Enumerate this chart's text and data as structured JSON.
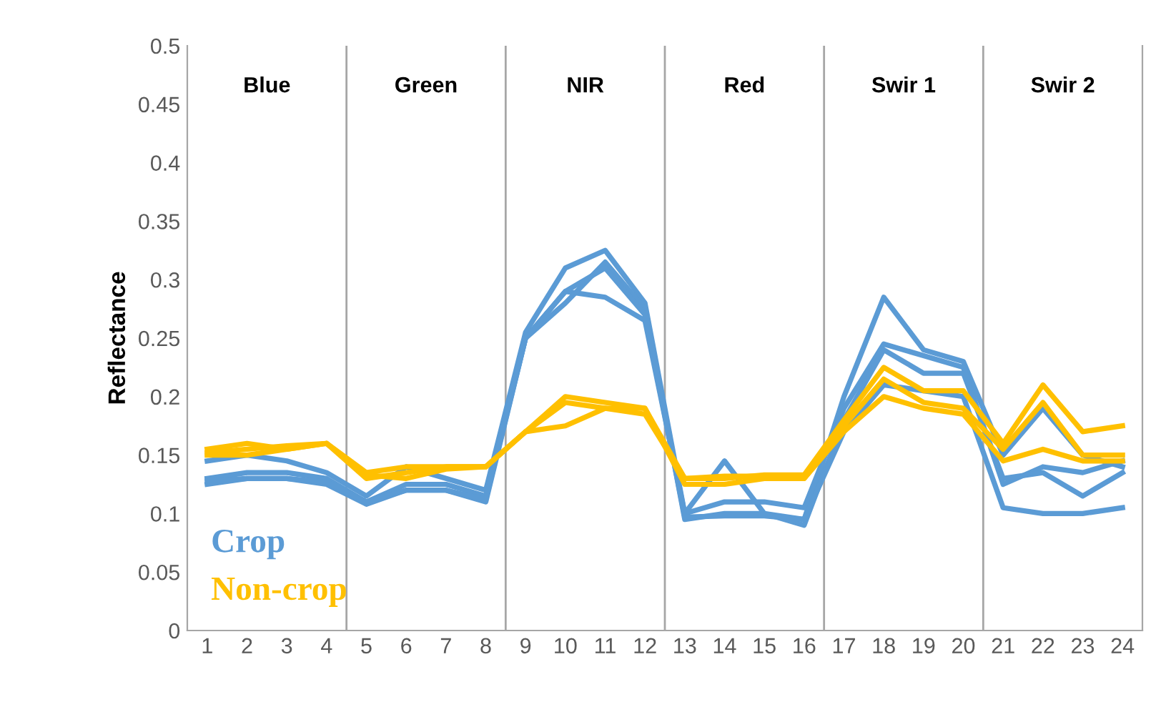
{
  "chart_data": {
    "type": "line",
    "ylabel": "Reflectance",
    "x": [
      1,
      2,
      3,
      4,
      5,
      6,
      7,
      8,
      9,
      10,
      11,
      12,
      13,
      14,
      15,
      16,
      17,
      18,
      19,
      20,
      21,
      22,
      23,
      24
    ],
    "xlim": [
      0.5,
      24.5
    ],
    "xticks": [
      1,
      2,
      3,
      4,
      5,
      6,
      7,
      8,
      9,
      10,
      11,
      12,
      13,
      14,
      15,
      16,
      17,
      18,
      19,
      20,
      21,
      22,
      23,
      24
    ],
    "ylim": [
      0,
      0.5
    ],
    "yticks": [
      0,
      0.05,
      0.1,
      0.15,
      0.2,
      0.25,
      0.3,
      0.35,
      0.4,
      0.45,
      0.5
    ],
    "grid": false,
    "legend": "bottom left",
    "marker": "none",
    "line_style": "solid",
    "series": [
      {
        "name": "Crop",
        "color": "#5b9bd5",
        "values": [
          0.145,
          0.15,
          0.145,
          0.135,
          0.115,
          0.14,
          0.13,
          0.12,
          0.255,
          0.31,
          0.325,
          0.28,
          0.1,
          0.145,
          0.1,
          0.095,
          0.2,
          0.285,
          0.24,
          0.23,
          0.15,
          0.19,
          0.15,
          0.14
        ]
      },
      {
        "color": "#5b9bd5",
        "values": [
          0.13,
          0.135,
          0.135,
          0.13,
          0.11,
          0.125,
          0.125,
          0.115,
          0.25,
          0.29,
          0.285,
          0.265,
          0.1,
          0.11,
          0.11,
          0.105,
          0.19,
          0.245,
          0.235,
          0.225,
          0.125,
          0.14,
          0.135,
          0.145
        ]
      },
      {
        "color": "#5b9bd5",
        "values": [
          0.125,
          0.13,
          0.13,
          0.125,
          0.108,
          0.12,
          0.12,
          0.11,
          0.25,
          0.28,
          0.315,
          0.275,
          0.095,
          0.1,
          0.1,
          0.09,
          0.18,
          0.24,
          0.22,
          0.22,
          0.13,
          0.135,
          0.115,
          0.135
        ]
      },
      {
        "color": "#5b9bd5",
        "values": [
          0.128,
          0.13,
          0.13,
          0.127,
          0.11,
          0.12,
          0.12,
          0.112,
          0.25,
          0.29,
          0.31,
          0.27,
          0.097,
          0.098,
          0.098,
          0.095,
          0.17,
          0.21,
          0.205,
          0.2,
          0.105,
          0.1,
          0.1,
          0.105
        ]
      },
      {
        "name": "Non-crop",
        "color": "#ffc000",
        "values": [
          0.155,
          0.16,
          0.155,
          0.16,
          0.135,
          0.14,
          0.14,
          0.14,
          0.17,
          0.2,
          0.195,
          0.19,
          0.13,
          0.13,
          0.133,
          0.133,
          0.18,
          0.225,
          0.205,
          0.205,
          0.16,
          0.21,
          0.17,
          0.175
        ]
      },
      {
        "color": "#ffc000",
        "values": [
          0.15,
          0.15,
          0.155,
          0.16,
          0.13,
          0.135,
          0.14,
          0.14,
          0.17,
          0.175,
          0.19,
          0.19,
          0.125,
          0.125,
          0.13,
          0.13,
          0.17,
          0.2,
          0.19,
          0.185,
          0.145,
          0.155,
          0.145,
          0.145
        ]
      },
      {
        "color": "#ffc000",
        "values": [
          0.152,
          0.155,
          0.158,
          0.16,
          0.133,
          0.13,
          0.138,
          0.14,
          0.17,
          0.195,
          0.19,
          0.185,
          0.13,
          0.132,
          0.132,
          0.13,
          0.175,
          0.215,
          0.195,
          0.19,
          0.155,
          0.195,
          0.15,
          0.15
        ]
      }
    ],
    "ref_lines": [
      {
        "axis": "x",
        "value": 4.5,
        "color": "#a6a6a6"
      },
      {
        "axis": "x",
        "value": 8.5,
        "color": "#a6a6a6"
      },
      {
        "axis": "x",
        "value": 12.5,
        "color": "#a6a6a6"
      },
      {
        "axis": "x",
        "value": 16.5,
        "color": "#a6a6a6"
      },
      {
        "axis": "x",
        "value": 20.5,
        "color": "#a6a6a6"
      }
    ],
    "annotations": [
      "Blue",
      "Green",
      "NIR",
      "Red",
      "Swir 1",
      "Swir 2"
    ]
  }
}
